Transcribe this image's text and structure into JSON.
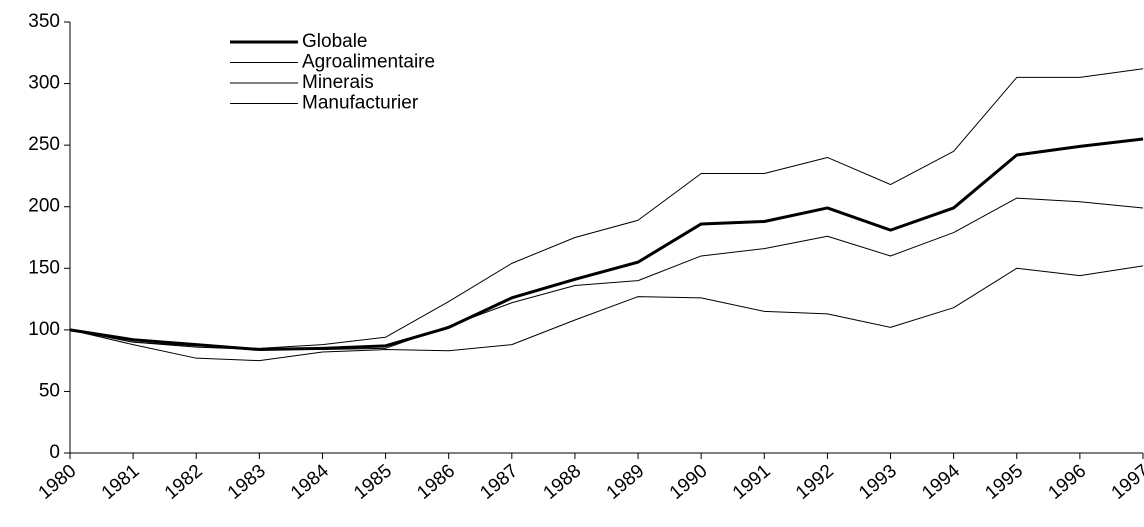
{
  "chart_data": {
    "type": "line",
    "categories": [
      "1980",
      "1981",
      "1982",
      "1983",
      "1984",
      "1985",
      "1986",
      "1987",
      "1988",
      "1989",
      "1990",
      "1991",
      "1992",
      "1993",
      "1994",
      "1995",
      "1996",
      "1997"
    ],
    "series": [
      {
        "name": "Globale",
        "color": "#000000",
        "line_width": 3,
        "values": [
          100,
          92,
          88,
          84,
          85,
          87,
          102,
          126,
          141,
          155,
          186,
          188,
          199,
          181,
          199,
          242,
          249,
          255
        ]
      },
      {
        "name": "Agroalimentaire",
        "color": "#000000",
        "line_width": 1,
        "values": [
          100,
          90,
          86,
          84,
          84,
          85,
          103,
          122,
          136,
          140,
          160,
          166,
          176,
          160,
          179,
          207,
          204,
          199
        ]
      },
      {
        "name": "Minerais",
        "color": "#000000",
        "line_width": 1,
        "values": [
          100,
          88,
          77,
          75,
          82,
          84,
          83,
          88,
          108,
          127,
          126,
          115,
          113,
          102,
          118,
          150,
          144,
          152
        ]
      },
      {
        "name": "Manufacturier",
        "color": "#000000",
        "line_width": 1,
        "values": [
          100,
          90,
          87,
          85,
          88,
          94,
          123,
          154,
          175,
          189,
          227,
          227,
          240,
          218,
          245,
          305,
          305,
          312
        ]
      }
    ],
    "ylim": [
      0,
      350
    ],
    "yticks": [
      0,
      50,
      100,
      150,
      200,
      250,
      300,
      350
    ]
  }
}
